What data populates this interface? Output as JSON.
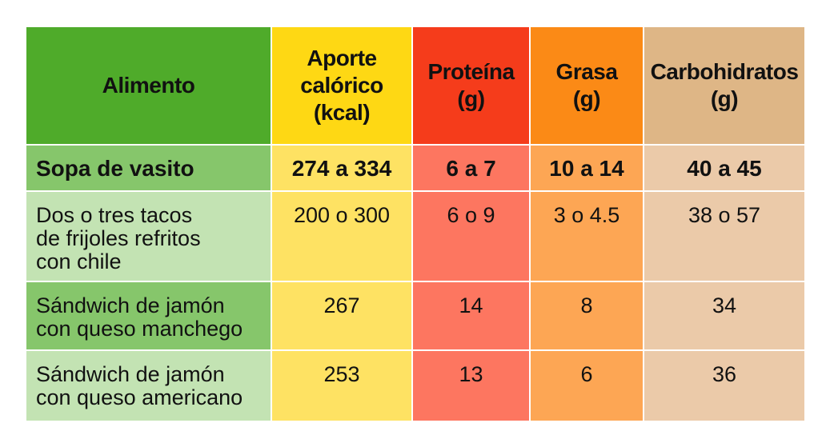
{
  "table": {
    "headers": [
      "Alimento",
      "Aporte\ncalórico\n(kcal)",
      "Proteína\n(g)",
      "Grasa\n(g)",
      "Carbohidratos\n(g)"
    ],
    "rows": [
      {
        "name": "Sopa de vasito",
        "kcal": "274 a 334",
        "protein": "6 a 7",
        "fat": "10 a 14",
        "carbs": "40 a 45"
      },
      {
        "name": "Dos o tres tacos\nde frijoles refritos\ncon chile",
        "kcal": "200 o 300",
        "protein": "6 o 9",
        "fat": "3 o 4.5",
        "carbs": "38 o 57"
      },
      {
        "name": "Sándwich de jamón\ncon queso manchego",
        "kcal": "267",
        "protein": "14",
        "fat": "8",
        "carbs": "34"
      },
      {
        "name": "Sándwich de jamón\ncon queso americano",
        "kcal": "253",
        "protein": "13",
        "fat": "6",
        "carbs": "36"
      }
    ]
  },
  "colors": {
    "header_food": "#4fab2a",
    "header_kcal": "#fed814",
    "header_protein": "#f53c1b",
    "header_fat": "#fb8a16",
    "header_carbs": "#deb686"
  }
}
